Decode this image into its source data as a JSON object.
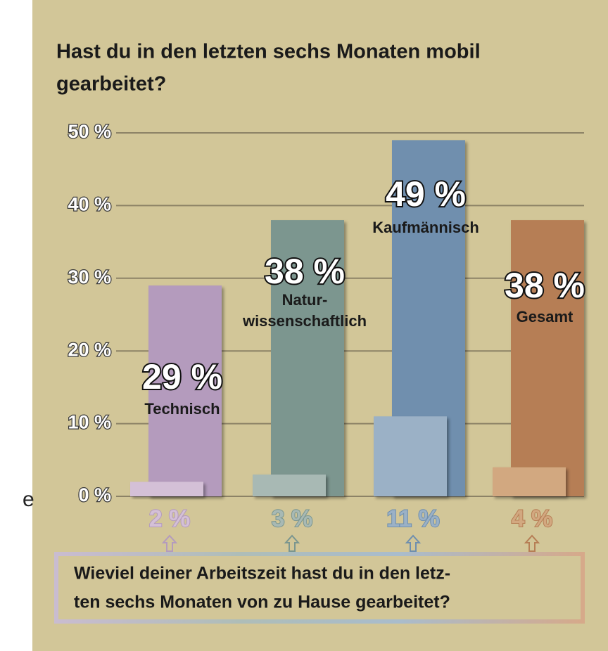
{
  "fragment": "e",
  "chart_data": {
    "type": "bar",
    "title": [
      "Hast du in den letzten sechs Monaten mobil",
      "gearbeitet?"
    ],
    "categories": [
      "Technisch",
      "Natur-\nwissenschaftlich",
      "Kaufmännisch",
      "Gesamt"
    ],
    "series": [
      {
        "colors": [
          "#b49bbd",
          "#7b968f",
          "#6f8fae",
          "#b67e55"
        ],
        "values": [
          29,
          38,
          49,
          38
        ],
        "value_labels": [
          "29 %",
          "38 %",
          "49 %",
          "38 %"
        ]
      },
      {
        "colors": [
          "#d4c0d7",
          "#a8b9b4",
          "#9bb1c6",
          "#d2a880"
        ],
        "values": [
          2,
          3,
          11,
          4
        ],
        "value_labels": [
          "2 %",
          "3 %",
          "11 %",
          "4 %"
        ]
      }
    ],
    "ylim": [
      0,
      50
    ],
    "yticks": [
      {
        "value": 0,
        "label": "0 %"
      },
      {
        "value": 10,
        "label": "10 %"
      },
      {
        "value": 20,
        "label": "20 %"
      },
      {
        "value": 30,
        "label": "30 %"
      },
      {
        "value": 40,
        "label": "40 %"
      },
      {
        "value": 50,
        "label": "50 %"
      }
    ],
    "grid": true,
    "question": [
      "Wieviel deiner Arbeitszeit hast du in den letz-",
      "ten sechs Monaten von zu Hause gearbeitet?"
    ]
  }
}
